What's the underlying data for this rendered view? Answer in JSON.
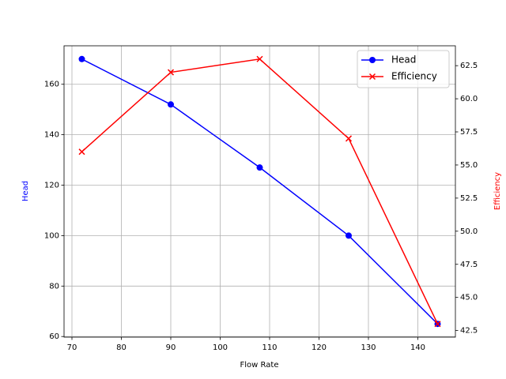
{
  "chart_data": {
    "type": "line",
    "x_label": "Flow Rate",
    "y_label": "Head",
    "y2_label": "Efficiency",
    "x": [
      72,
      90,
      108,
      126,
      144
    ],
    "series": [
      {
        "name": "Head",
        "color": "#0000ff",
        "marker": "circle",
        "values": [
          170,
          152,
          127,
          100,
          65
        ]
      },
      {
        "name": "Efficiency",
        "color": "#ff0000",
        "marker": "x",
        "axis": "y2",
        "values": [
          56,
          62,
          63,
          57,
          43
        ]
      }
    ],
    "xlim": [
      68.4,
      147.6
    ],
    "xticks": [
      70,
      80,
      90,
      100,
      110,
      120,
      130,
      140
    ],
    "ylim": [
      59.75,
      175.25
    ],
    "yticks": [
      60,
      80,
      100,
      120,
      140,
      160
    ],
    "y2lim": [
      42,
      64
    ],
    "y2ticks": [
      42.5,
      {
        "value": 45,
        "label": "45.0"
      },
      47.5,
      {
        "value": 50,
        "label": "50.0"
      },
      52.5,
      {
        "value": 55,
        "label": "55.0"
      },
      57.5,
      {
        "value": 60,
        "label": "60.0"
      },
      62.5
    ],
    "grid": true,
    "legend": "upper right"
  }
}
